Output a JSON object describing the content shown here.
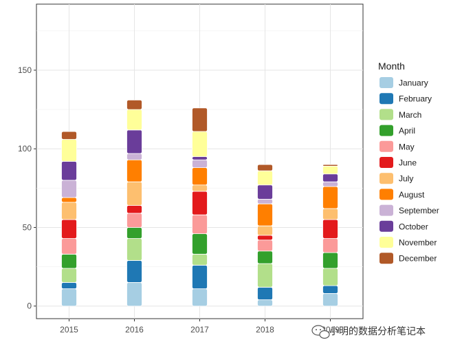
{
  "chart_data": {
    "type": "bar",
    "stacked": true,
    "categories": [
      "2015",
      "2016",
      "2017",
      "2018",
      "2019"
    ],
    "legend_title": "Month",
    "legend_position": "right",
    "grid": true,
    "ylim": [
      -8,
      192
    ],
    "yticks": [
      0,
      50,
      100,
      150
    ],
    "series": [
      {
        "name": "January",
        "color": "#A6CEE3",
        "values": [
          11,
          15,
          11,
          4,
          8
        ]
      },
      {
        "name": "February",
        "color": "#1F78B4",
        "values": [
          4,
          14,
          15,
          8,
          5
        ]
      },
      {
        "name": "March",
        "color": "#B2DF8A",
        "values": [
          9,
          14,
          7,
          15,
          11
        ]
      },
      {
        "name": "April",
        "color": "#33A02C",
        "values": [
          9,
          7,
          13,
          8,
          10
        ]
      },
      {
        "name": "May",
        "color": "#FB9A99",
        "values": [
          10,
          9,
          12,
          7,
          9
        ]
      },
      {
        "name": "June",
        "color": "#E31A1C",
        "values": [
          12,
          5,
          15,
          3,
          12
        ]
      },
      {
        "name": "July",
        "color": "#FDBF6F",
        "values": [
          11,
          15,
          4,
          6,
          7
        ]
      },
      {
        "name": "August",
        "color": "#FF7F00",
        "values": [
          3,
          14,
          11,
          14,
          14
        ]
      },
      {
        "name": "September",
        "color": "#CAB2D6",
        "values": [
          11,
          4,
          5,
          3,
          3
        ]
      },
      {
        "name": "October",
        "color": "#6A3D9A",
        "values": [
          12,
          15,
          2,
          9,
          5
        ]
      },
      {
        "name": "November",
        "color": "#FFFF99",
        "values": [
          14,
          13,
          16,
          9,
          5
        ]
      },
      {
        "name": "December",
        "color": "#B15928",
        "values": [
          5,
          6,
          15,
          4,
          1
        ]
      }
    ]
  },
  "watermark": {
    "text": "小明的数据分析笔记本",
    "icon": "wechat-icon"
  }
}
